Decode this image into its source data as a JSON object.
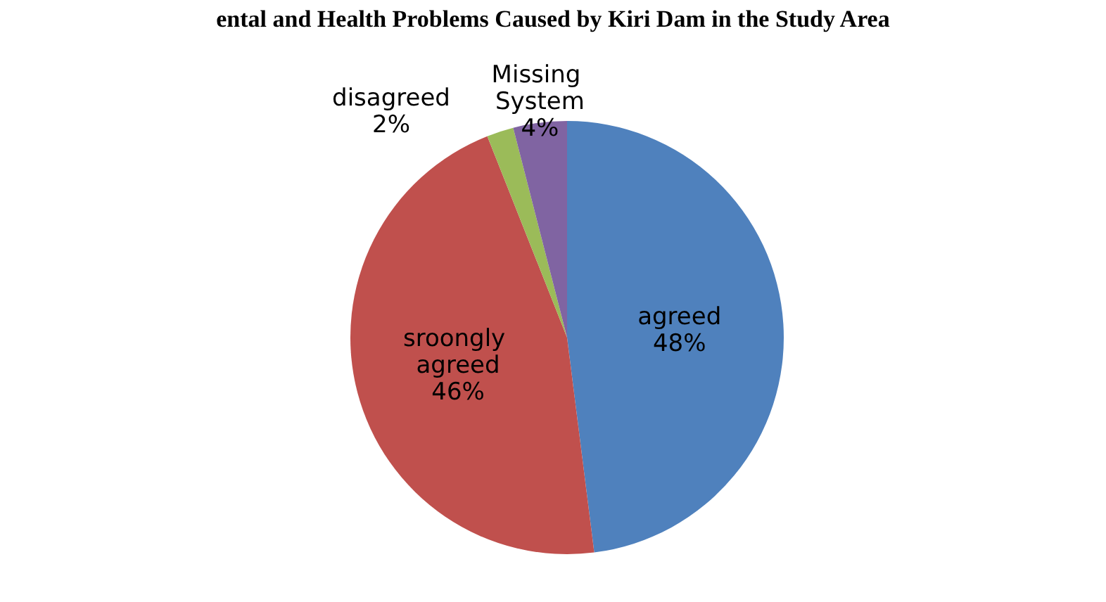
{
  "chart_data": {
    "type": "pie",
    "title": "ental and Health Problems Caused by Kiri Dam in the Study Area",
    "categories": [
      "agreed",
      "sroongly agreed",
      "disagreed",
      "Missing System"
    ],
    "values": [
      48,
      46,
      2,
      4
    ],
    "value_labels": [
      "48%",
      "46%",
      "2%",
      "4%"
    ],
    "colors": [
      "#4f81bd",
      "#c0504d",
      "#9bbb59",
      "#8064a2"
    ],
    "legend": false
  }
}
